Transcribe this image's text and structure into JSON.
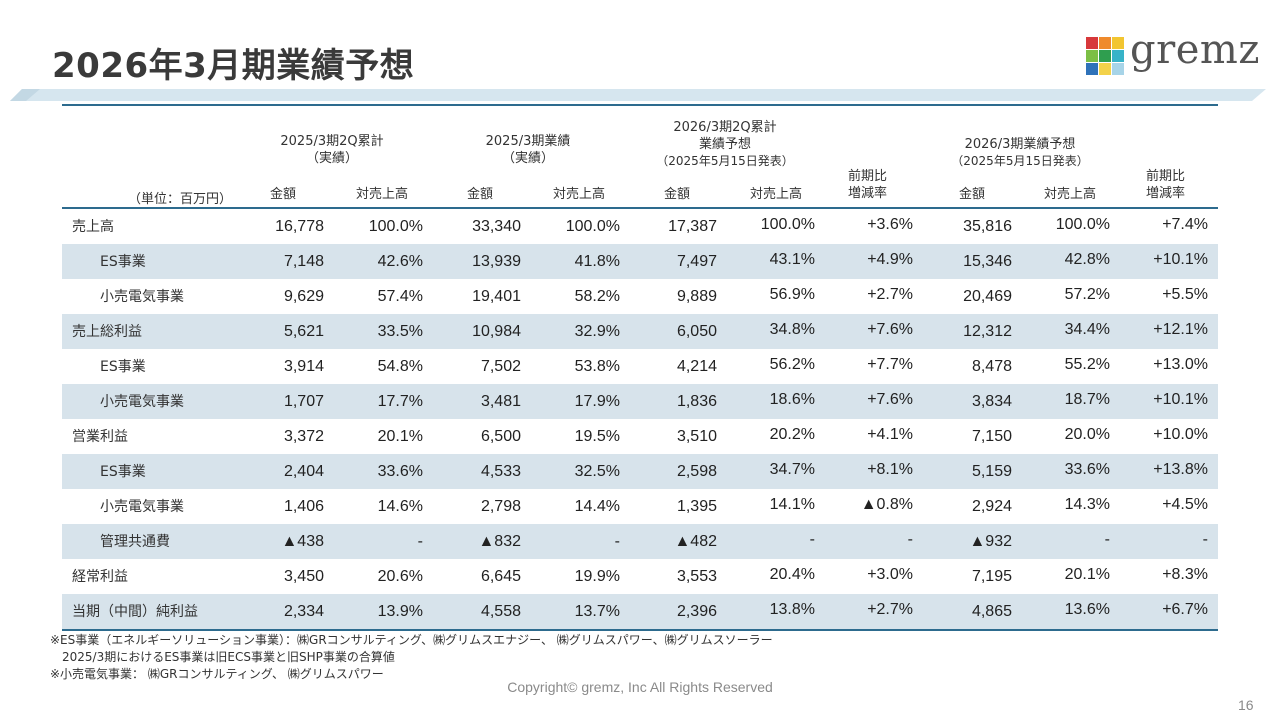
{
  "title": "2026年3月期業績予想",
  "logo": {
    "text": "gremz",
    "colors": [
      "#d7383b",
      "#ef8a2c",
      "#f2c531",
      "#7cbf45",
      "#2f9e4f",
      "#37b3c8",
      "#2f72b9",
      "#f3d24a",
      "#a7d4e8"
    ]
  },
  "table": {
    "unit": "（単位：百万円）",
    "groups": [
      {
        "line1": "2025/3期2Q累計",
        "line2": "（実績）",
        "line3": ""
      },
      {
        "line1": "2025/3期業績",
        "line2": "（実績）",
        "line3": ""
      },
      {
        "line1": "2026/3期2Q累計",
        "line2": "業績予想",
        "line3": "（2025年5月15日発表）"
      },
      {
        "line1": "2026/3期業績予想",
        "line2": "（2025年5月15日発表）",
        "line3": ""
      }
    ],
    "col_amount": "金額",
    "col_ratio": "対売上高",
    "col_change": {
      "line1": "前期比",
      "line2": "増減率"
    },
    "rows": [
      {
        "label": "売上高",
        "indent": false,
        "v": [
          "16,778",
          "100.0%",
          "33,340",
          "100.0%",
          "17,387",
          "100.0%",
          "+3.6%",
          "35,816",
          "100.0%",
          "+7.4%"
        ]
      },
      {
        "label": "ES事業",
        "indent": true,
        "v": [
          "7,148",
          "42.6%",
          "13,939",
          "41.8%",
          "7,497",
          "43.1%",
          "+4.9%",
          "15,346",
          "42.8%",
          "+10.1%"
        ]
      },
      {
        "label": "小売電気事業",
        "indent": true,
        "v": [
          "9,629",
          "57.4%",
          "19,401",
          "58.2%",
          "9,889",
          "56.9%",
          "+2.7%",
          "20,469",
          "57.2%",
          "+5.5%"
        ]
      },
      {
        "label": "売上総利益",
        "indent": false,
        "v": [
          "5,621",
          "33.5%",
          "10,984",
          "32.9%",
          "6,050",
          "34.8%",
          "+7.6%",
          "12,312",
          "34.4%",
          "+12.1%"
        ]
      },
      {
        "label": "ES事業",
        "indent": true,
        "v": [
          "3,914",
          "54.8%",
          "7,502",
          "53.8%",
          "4,214",
          "56.2%",
          "+7.7%",
          "8,478",
          "55.2%",
          "+13.0%"
        ]
      },
      {
        "label": "小売電気事業",
        "indent": true,
        "v": [
          "1,707",
          "17.7%",
          "3,481",
          "17.9%",
          "1,836",
          "18.6%",
          "+7.6%",
          "3,834",
          "18.7%",
          "+10.1%"
        ]
      },
      {
        "label": "営業利益",
        "indent": false,
        "v": [
          "3,372",
          "20.1%",
          "6,500",
          "19.5%",
          "3,510",
          "20.2%",
          "+4.1%",
          "7,150",
          "20.0%",
          "+10.0%"
        ]
      },
      {
        "label": "ES事業",
        "indent": true,
        "v": [
          "2,404",
          "33.6%",
          "4,533",
          "32.5%",
          "2,598",
          "34.7%",
          "+8.1%",
          "5,159",
          "33.6%",
          "+13.8%"
        ]
      },
      {
        "label": "小売電気事業",
        "indent": true,
        "v": [
          "1,406",
          "14.6%",
          "2,798",
          "14.4%",
          "1,395",
          "14.1%",
          "▲0.8%",
          "2,924",
          "14.3%",
          "+4.5%"
        ]
      },
      {
        "label": "管理共通費",
        "indent": true,
        "v": [
          "▲438",
          "-",
          "▲832",
          "-",
          "▲482",
          "-",
          "-",
          "▲932",
          "-",
          "-"
        ]
      },
      {
        "label": "経常利益",
        "indent": false,
        "v": [
          "3,450",
          "20.6%",
          "6,645",
          "19.9%",
          "3,553",
          "20.4%",
          "+3.0%",
          "7,195",
          "20.1%",
          "+8.3%"
        ]
      },
      {
        "label": "当期（中間）純利益",
        "indent": false,
        "v": [
          "2,334",
          "13.9%",
          "4,558",
          "13.7%",
          "2,396",
          "13.8%",
          "+2.7%",
          "4,865",
          "13.6%",
          "+6.7%"
        ]
      }
    ]
  },
  "notes": [
    "※ES事業（エネルギーソリューション事業）：㈱GRコンサルティング、㈱グリムスエナジー、 ㈱グリムスパワー、㈱グリムスソーラー",
    "　2025/3期におけるES事業は旧ECS事業と旧SHP事業の合算値",
    "※小売電気事業： ㈱GRコンサルティング、 ㈱グリムスパワー"
  ],
  "copyright": "Copyright© gremz, Inc All Rights Reserved",
  "page_number": "16"
}
